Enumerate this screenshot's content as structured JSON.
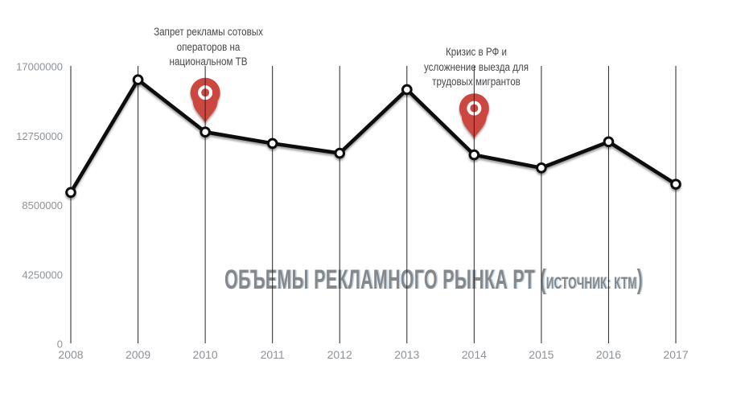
{
  "page": {
    "background": "#ffffff"
  },
  "title": {
    "main": "ОБЪЕМЫ РЕКЛАМНОГО РЫНКА РТ (",
    "source": "ИСТОЧНИК: КТМ",
    "close": ")"
  },
  "chart_data": {
    "type": "line",
    "title": "ОБЪЕМЫ РЕКЛАМНОГО РЫНКА РТ (источник: КТМ)",
    "categories": [
      "2008",
      "2009",
      "2010",
      "2011",
      "2012",
      "2013",
      "2014",
      "2015",
      "2016",
      "2017"
    ],
    "values": [
      9300000,
      16200000,
      13000000,
      12300000,
      11700000,
      15600000,
      11600000,
      10800000,
      12400000,
      9800000
    ],
    "ylim": [
      0,
      17000000
    ],
    "y_ticks": [
      0,
      4250000,
      8500000,
      12750000,
      17000000
    ],
    "grid": "vertical-only",
    "legend": "none",
    "marker": "open-circle",
    "annotations": [
      {
        "year": "2010",
        "label_lines": "Запрет рекламы сотовых\nоператоров на\nнациональном ТВ",
        "icon": "map-pin-icon"
      },
      {
        "year": "2014",
        "label_lines": "Кризис в РФ и\nусложнение выезда для\nтрудовых мигрантов",
        "icon": "map-pin-icon"
      }
    ]
  },
  "colors": {
    "line": "#0d0d0d",
    "marker_fill": "#ffffff",
    "gridline": "#262626",
    "axis_label": "#8d929a",
    "annotation_text": "#45484b",
    "pin": "#cb4640",
    "pin_ring": "#ffffff",
    "title": "#85878a"
  }
}
